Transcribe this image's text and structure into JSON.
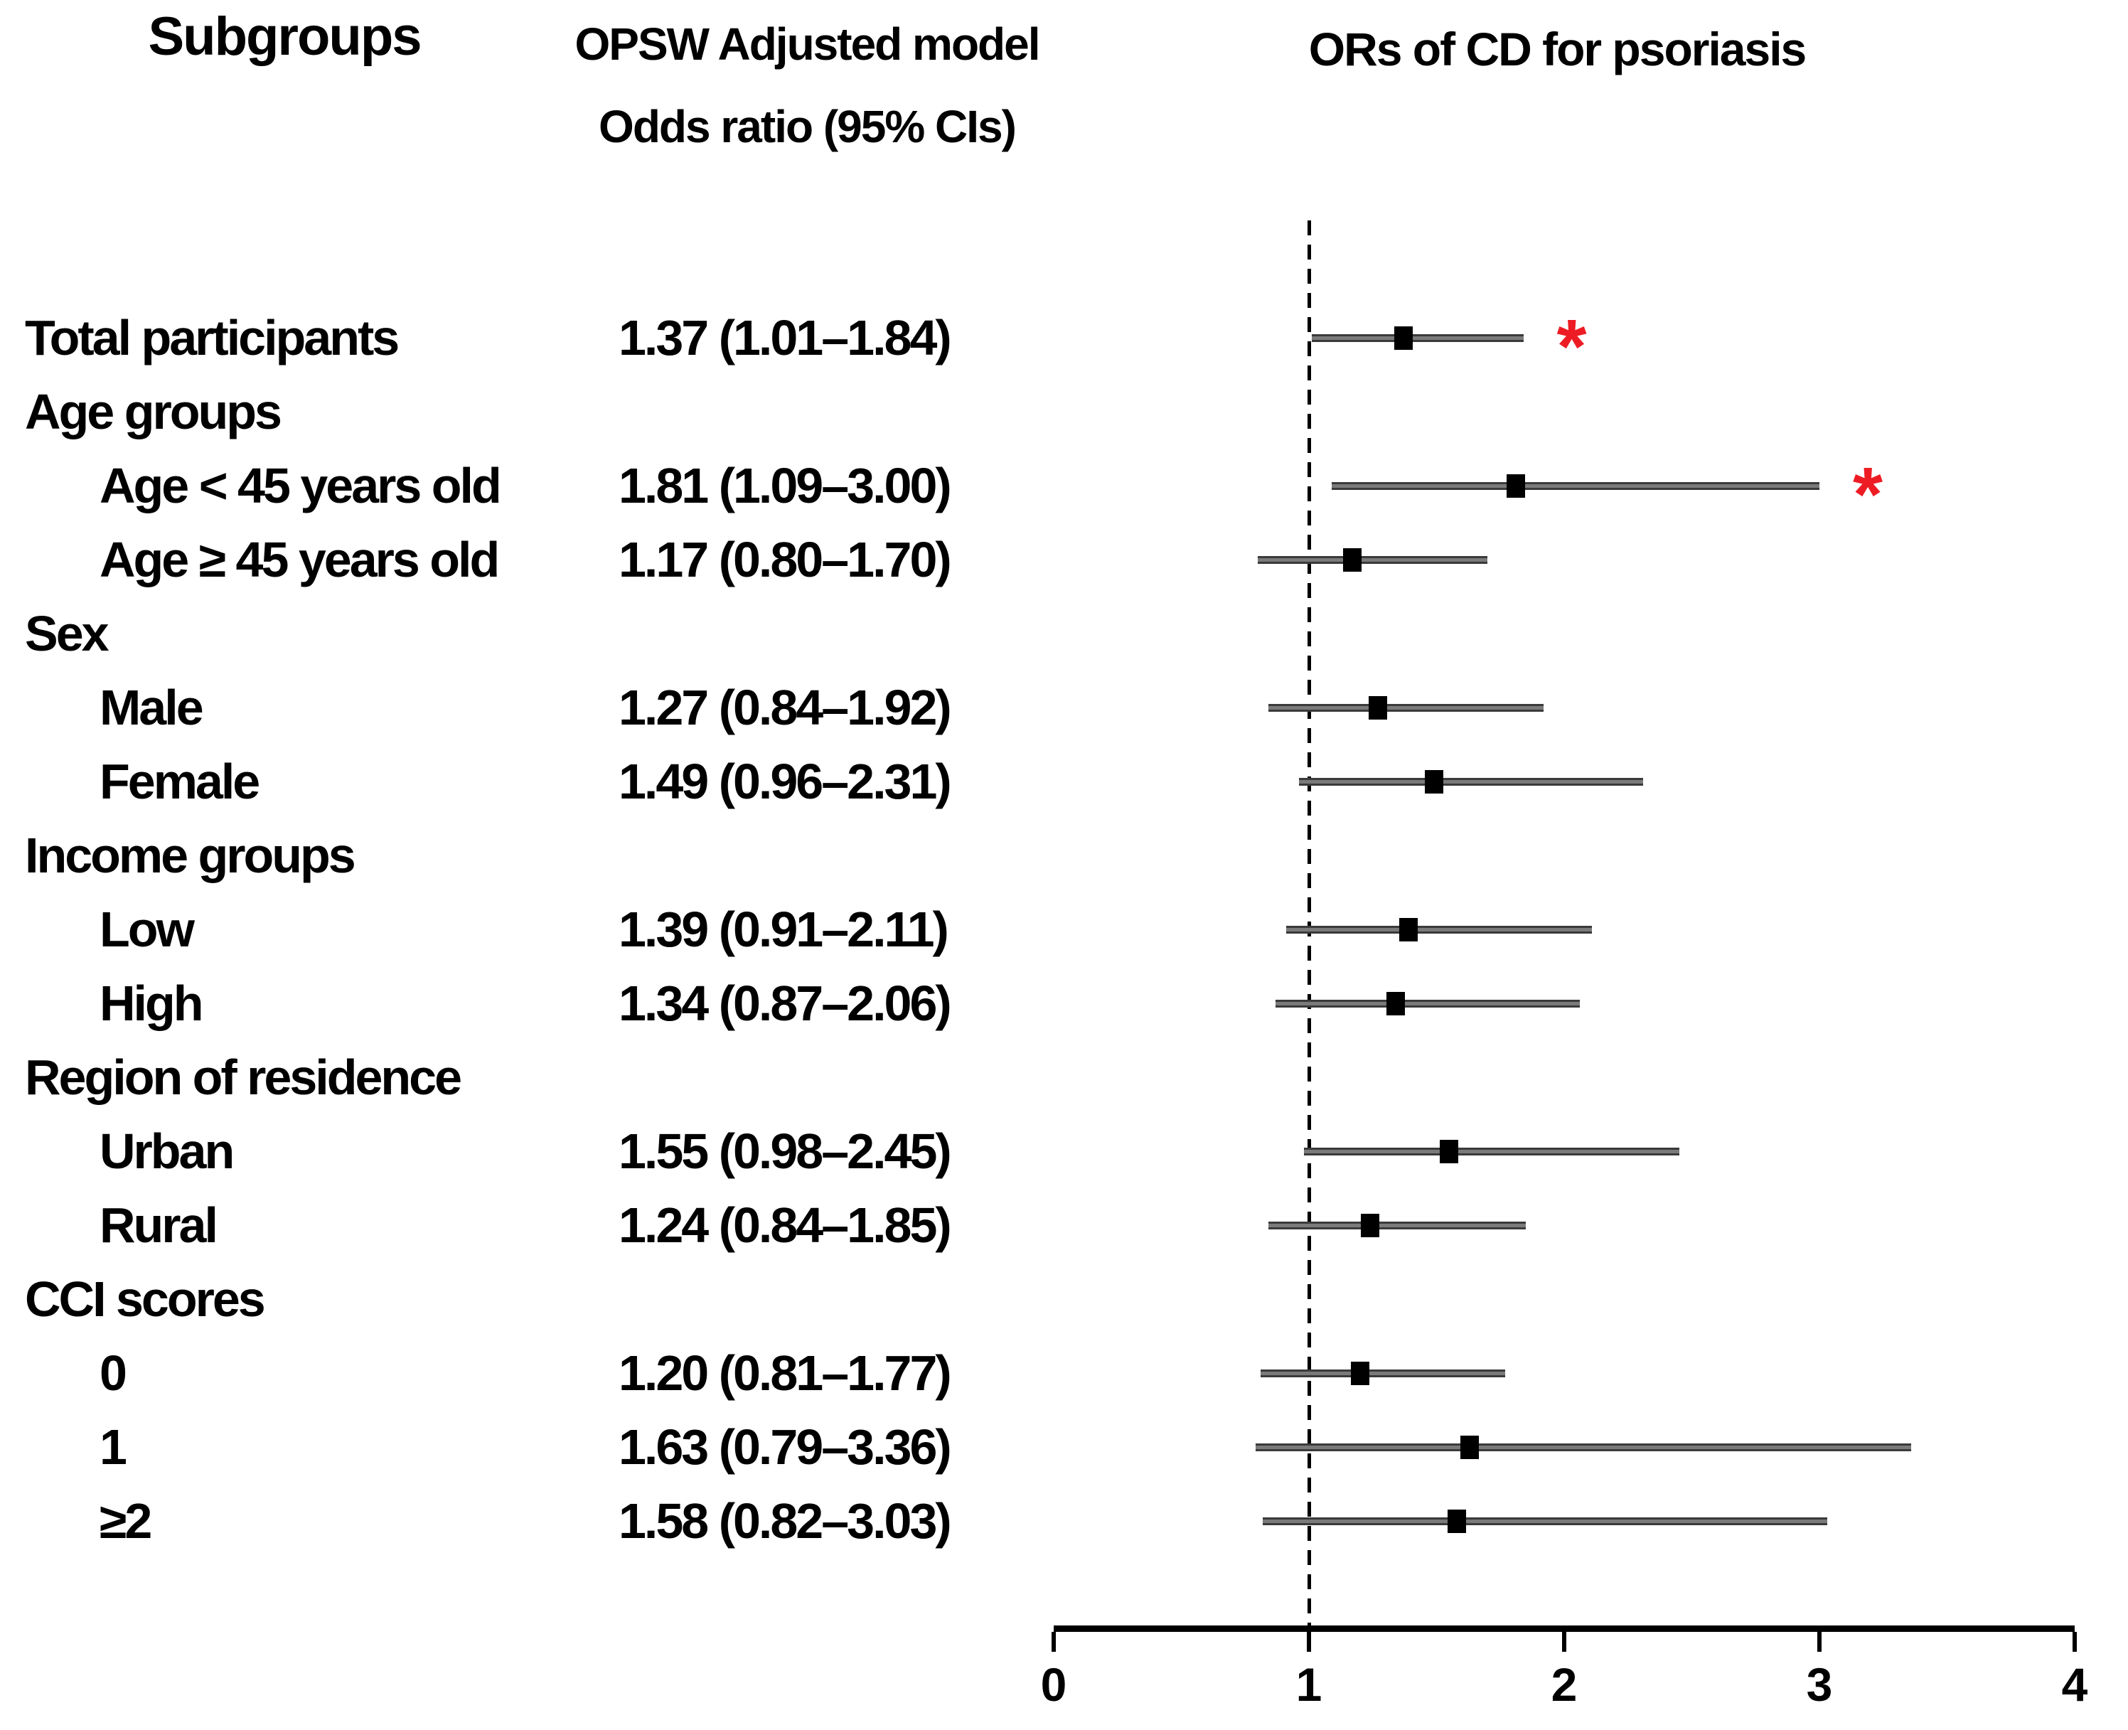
{
  "header": {
    "subgroups_title": "Subgroups",
    "model_title_line1": "OPSW Adjusted model",
    "model_title_line2": "Odds ratio (95% CIs)",
    "plot_title": "ORs of CD for psoriasis"
  },
  "style": {
    "significance_color": "#ed1c24",
    "ci_line_color": "#7a7a7a",
    "marker_color": "#000000",
    "text_color": "#000000",
    "background_color": "#ffffff"
  },
  "significance_marker_glyph": "*",
  "chart_data": {
    "type": "scatter",
    "subtype": "forest_plot",
    "title": "ORs of CD for psoriasis",
    "value_column_header": [
      "OPSW Adjusted model",
      "Odds ratio (95% CIs)"
    ],
    "row_column_header": "Subgroups",
    "axis": {
      "orientation": "horizontal",
      "min": 0,
      "max": 4,
      "ticks": [
        0,
        1,
        2,
        3,
        4
      ],
      "reference_line": 1,
      "grid": false
    },
    "rows": [
      {
        "label": "Total participants",
        "header": false,
        "indent": false,
        "value_text": "1.37 (1.01–1.84)",
        "or": 1.37,
        "low": 1.01,
        "high": 1.84,
        "significant": true
      },
      {
        "label": "Age groups",
        "header": true,
        "indent": false,
        "value_text": null,
        "or": null,
        "low": null,
        "high": null,
        "significant": false
      },
      {
        "label": "Age < 45 years old",
        "header": false,
        "indent": true,
        "value_text": "1.81 (1.09–3.00)",
        "or": 1.81,
        "low": 1.09,
        "high": 3.0,
        "significant": true
      },
      {
        "label": "Age ≥ 45 years old",
        "header": false,
        "indent": true,
        "value_text": "1.17 (0.80–1.70)",
        "or": 1.17,
        "low": 0.8,
        "high": 1.7,
        "significant": false
      },
      {
        "label": "Sex",
        "header": true,
        "indent": false,
        "value_text": null,
        "or": null,
        "low": null,
        "high": null,
        "significant": false
      },
      {
        "label": "Male",
        "header": false,
        "indent": true,
        "value_text": "1.27 (0.84–1.92)",
        "or": 1.27,
        "low": 0.84,
        "high": 1.92,
        "significant": false
      },
      {
        "label": "Female",
        "header": false,
        "indent": true,
        "value_text": "1.49 (0.96–2.31)",
        "or": 1.49,
        "low": 0.96,
        "high": 2.31,
        "significant": false
      },
      {
        "label": "Income groups",
        "header": true,
        "indent": false,
        "value_text": null,
        "or": null,
        "low": null,
        "high": null,
        "significant": false
      },
      {
        "label": "Low",
        "header": false,
        "indent": true,
        "value_text": "1.39 (0.91–2.11)",
        "or": 1.39,
        "low": 0.91,
        "high": 2.11,
        "significant": false
      },
      {
        "label": "High",
        "header": false,
        "indent": true,
        "value_text": "1.34 (0.87–2.06)",
        "or": 1.34,
        "low": 0.87,
        "high": 2.06,
        "significant": false
      },
      {
        "label": "Region of residence",
        "header": true,
        "indent": false,
        "value_text": null,
        "or": null,
        "low": null,
        "high": null,
        "significant": false
      },
      {
        "label": "Urban",
        "header": false,
        "indent": true,
        "value_text": "1.55 (0.98–2.45)",
        "or": 1.55,
        "low": 0.98,
        "high": 2.45,
        "significant": false
      },
      {
        "label": "Rural",
        "header": false,
        "indent": true,
        "value_text": "1.24 (0.84–1.85)",
        "or": 1.24,
        "low": 0.84,
        "high": 1.85,
        "significant": false
      },
      {
        "label": "CCI scores",
        "header": true,
        "indent": false,
        "value_text": null,
        "or": null,
        "low": null,
        "high": null,
        "significant": false
      },
      {
        "label": "0",
        "header": false,
        "indent": true,
        "value_text": "1.20 (0.81–1.77)",
        "or": 1.2,
        "low": 0.81,
        "high": 1.77,
        "significant": false
      },
      {
        "label": "1",
        "header": false,
        "indent": true,
        "value_text": "1.63 (0.79–3.36)",
        "or": 1.63,
        "low": 0.79,
        "high": 3.36,
        "significant": false
      },
      {
        "label": "≥2",
        "header": false,
        "indent": true,
        "value_text": "1.58 (0.82–3.03)",
        "or": 1.58,
        "low": 0.82,
        "high": 3.03,
        "significant": false
      }
    ]
  }
}
